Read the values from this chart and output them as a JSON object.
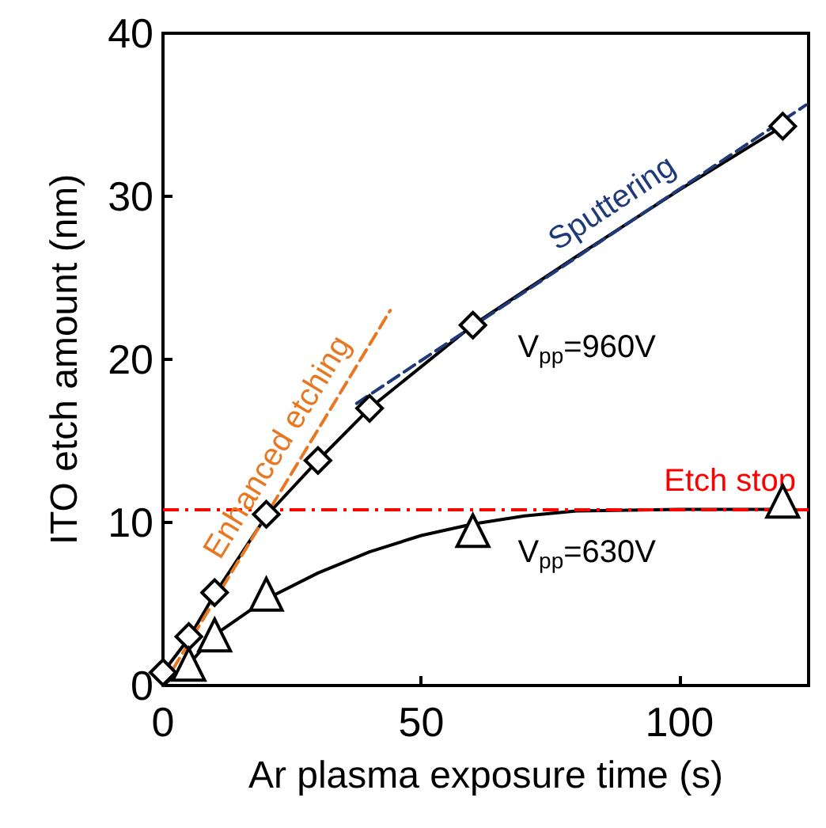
{
  "chart_data": {
    "type": "scatter",
    "xlabel": "Ar plasma exposure time (s)",
    "ylabel": "ITO etch amount (nm)",
    "xlim": [
      0,
      125
    ],
    "ylim": [
      0,
      40
    ],
    "xticks": [
      0,
      50,
      100
    ],
    "yticks": [
      0,
      10,
      20,
      30,
      40
    ],
    "grid": false,
    "legend": false,
    "series": [
      {
        "type": "line",
        "color": "#000000",
        "marker": "none",
        "line_style": "solid",
        "x": [
          0,
          5,
          10,
          20,
          30,
          40,
          60,
          80,
          100,
          120
        ],
        "values": [
          0.8,
          2.9,
          5.6,
          10.4,
          13.8,
          17.0,
          22.1,
          26.3,
          30.4,
          34.3
        ]
      },
      {
        "type": "line",
        "color": "#000000",
        "marker": "none",
        "line_style": "solid",
        "x": [
          0,
          5,
          10,
          20,
          30,
          40,
          50,
          60,
          70,
          80,
          100,
          120
        ],
        "values": [
          0,
          1.3,
          3.1,
          5.3,
          6.9,
          8.2,
          9.2,
          9.9,
          10.4,
          10.7,
          10.8,
          10.8
        ]
      },
      {
        "type": "line",
        "name": "Enhanced etching",
        "color": "#e87722",
        "marker": "none",
        "line_style": "dashed",
        "x": [
          0,
          44
        ],
        "values": [
          0,
          23
        ]
      },
      {
        "type": "line",
        "name": "Sputtering",
        "color": "#1f3a7a",
        "marker": "none",
        "line_style": "dashed",
        "x": [
          37.5,
          124.5
        ],
        "values": [
          17.3,
          35.6
        ]
      },
      {
        "name": "V$_{pp}$=960V",
        "color": "#000000",
        "marker": "diamond",
        "x": [
          0,
          5,
          10,
          20,
          30,
          40,
          60,
          120
        ],
        "values": [
          0.8,
          3.0,
          5.7,
          10.5,
          13.8,
          17.0,
          22.1,
          34.3
        ]
      },
      {
        "name": "V$_{pp}$=630V",
        "color": "#000000",
        "marker": "triangle",
        "x": [
          5,
          10,
          20,
          60,
          120
        ],
        "values": [
          1.3,
          3.1,
          5.6,
          9.5,
          11.3
        ]
      }
    ],
    "ref_lines": [
      {
        "axis": "y",
        "value": 10.8,
        "label": "Etch stop",
        "color": "#ff0000",
        "line_style": "dashed"
      }
    ]
  }
}
